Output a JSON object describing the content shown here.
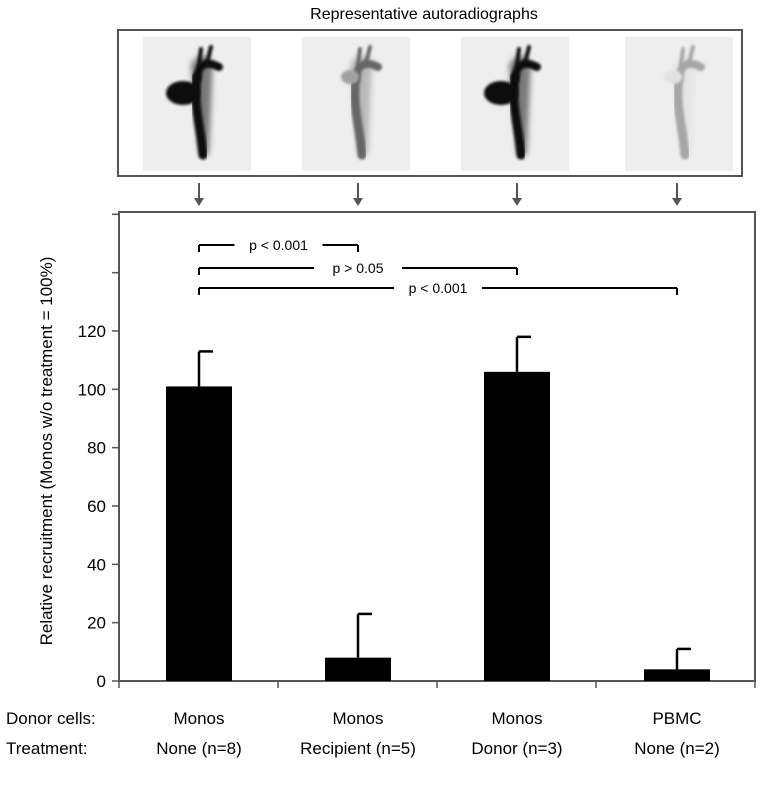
{
  "chart_data": {
    "type": "bar",
    "top_title": "Representative autoradiographs",
    "title": "",
    "ylabel": "Relative recruitment (Monos w/o treatment = 100%)",
    "xlabel": "",
    "ylim": [
      0,
      140
    ],
    "yticks": [
      0,
      20,
      40,
      60,
      80,
      100,
      120
    ],
    "grid": false,
    "row_labels": [
      "Donor cells:",
      "Treatment:"
    ],
    "categories": [
      {
        "donor_cells": "Monos",
        "treatment": "None (n=8)"
      },
      {
        "donor_cells": "Monos",
        "treatment": "Recipient (n=5)"
      },
      {
        "donor_cells": "Monos",
        "treatment": "Donor (n=3)"
      },
      {
        "donor_cells": "PBMC",
        "treatment": "None (n=2)"
      }
    ],
    "values": [
      101,
      8,
      106,
      4
    ],
    "error": [
      12,
      15,
      12,
      7
    ],
    "bar_color": "#000000",
    "autoradiograph_intensity": [
      0.95,
      0.6,
      0.95,
      0.35
    ],
    "comparisons": [
      {
        "from": 0,
        "to": 1,
        "label": "p < 0.001"
      },
      {
        "from": 0,
        "to": 2,
        "label": "p > 0.05"
      },
      {
        "from": 0,
        "to": 3,
        "label": "p < 0.001"
      }
    ]
  }
}
